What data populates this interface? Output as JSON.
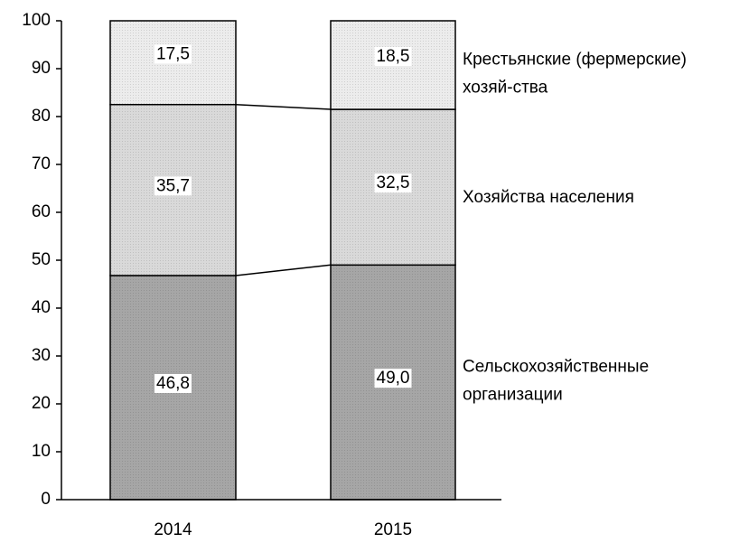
{
  "chart_data": {
    "type": "stacked_bar",
    "categories": [
      "2014",
      "2015"
    ],
    "series": [
      {
        "name": "Сельскохозяйственные организации",
        "color": "#a6a6a6",
        "values": [
          46.8,
          49.0
        ],
        "value_labels": [
          "46,8",
          "49,0"
        ]
      },
      {
        "name": "Хозяйства населения",
        "color": "#d9d9d9",
        "values": [
          35.7,
          32.5
        ],
        "value_labels": [
          "35,7",
          "32,5"
        ]
      },
      {
        "name": "Крестьянские (фермерские) хозяй-ства",
        "color": "#ececec",
        "values": [
          17.5,
          18.5
        ],
        "value_labels": [
          "17,5",
          "18,5"
        ]
      }
    ],
    "ylim": [
      0,
      100
    ],
    "yticks": [
      0,
      10,
      20,
      30,
      40,
      50,
      60,
      70,
      80,
      90,
      100
    ]
  }
}
